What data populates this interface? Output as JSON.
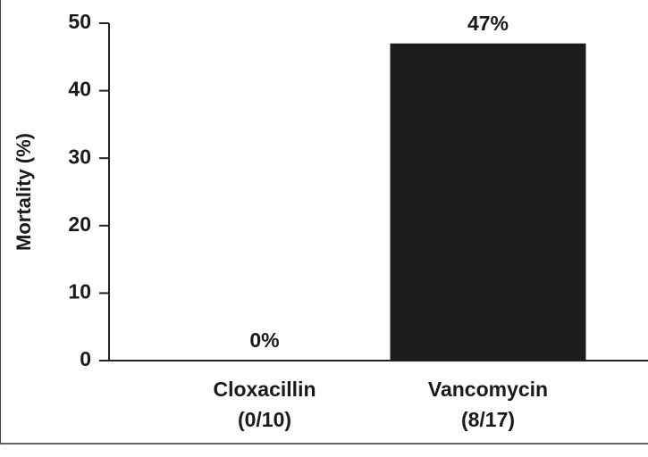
{
  "chart_data": {
    "type": "bar",
    "y_axis_label": "Mortality (%)",
    "categories": [
      [
        "Cloxacillin",
        "(0/10)"
      ],
      [
        "Vancomycin",
        "(8/17)"
      ]
    ],
    "values": [
      0,
      47
    ],
    "value_labels": [
      "0%",
      "47%"
    ],
    "color": "#1c1c1c",
    "ylim": [
      0,
      50
    ],
    "yticks": [
      0,
      10,
      20,
      30,
      40,
      50
    ]
  }
}
